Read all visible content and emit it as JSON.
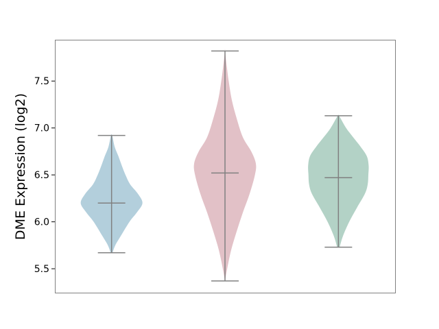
{
  "chart_data": {
    "type": "violin",
    "title": "",
    "xlabel": "",
    "ylabel": "DME Expression (log2)",
    "ylim": [
      5.245,
      7.94
    ],
    "yticks": [
      "5.5",
      "6.0",
      "6.5",
      "7.0",
      "7.5"
    ],
    "grid": false,
    "series": [
      {
        "color": "#b3cfdc",
        "min": 5.67,
        "max": 6.92,
        "center": 6.2,
        "density": [
          [
            5.67,
            0.03
          ],
          [
            5.75,
            0.12
          ],
          [
            5.85,
            0.3
          ],
          [
            6.0,
            0.58
          ],
          [
            6.1,
            0.82
          ],
          [
            6.2,
            1.0
          ],
          [
            6.3,
            0.85
          ],
          [
            6.4,
            0.6
          ],
          [
            6.5,
            0.45
          ],
          [
            6.6,
            0.33
          ],
          [
            6.7,
            0.22
          ],
          [
            6.8,
            0.1
          ],
          [
            6.92,
            0.02
          ]
        ]
      },
      {
        "color": "#e2c1c7",
        "min": 5.37,
        "max": 7.82,
        "center": 6.52,
        "density": [
          [
            5.37,
            0.0
          ],
          [
            5.5,
            0.07
          ],
          [
            5.7,
            0.2
          ],
          [
            5.9,
            0.38
          ],
          [
            6.1,
            0.58
          ],
          [
            6.3,
            0.8
          ],
          [
            6.5,
            0.97
          ],
          [
            6.62,
            1.0
          ],
          [
            6.75,
            0.85
          ],
          [
            6.9,
            0.58
          ],
          [
            7.1,
            0.38
          ],
          [
            7.3,
            0.22
          ],
          [
            7.5,
            0.12
          ],
          [
            7.65,
            0.06
          ],
          [
            7.82,
            0.0
          ]
        ]
      },
      {
        "color": "#b3d2c6",
        "min": 5.73,
        "max": 7.13,
        "center": 6.47,
        "density": [
          [
            5.73,
            0.04
          ],
          [
            5.85,
            0.15
          ],
          [
            6.0,
            0.35
          ],
          [
            6.15,
            0.6
          ],
          [
            6.3,
            0.86
          ],
          [
            6.4,
            0.95
          ],
          [
            6.5,
            0.97
          ],
          [
            6.6,
            0.98
          ],
          [
            6.7,
            0.92
          ],
          [
            6.8,
            0.72
          ],
          [
            6.9,
            0.48
          ],
          [
            7.0,
            0.25
          ],
          [
            7.13,
            0.02
          ]
        ]
      }
    ],
    "line_color": "#808080"
  }
}
